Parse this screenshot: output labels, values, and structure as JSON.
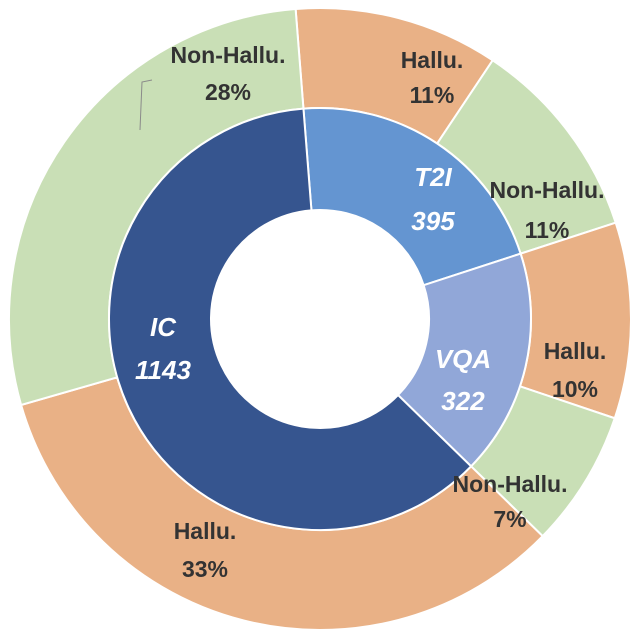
{
  "chart_data": {
    "type": "sunburst",
    "inner_ring": [
      {
        "name": "IC",
        "value": 1143,
        "color": "#36558f"
      },
      {
        "name": "T2I",
        "value": 395,
        "color": "#6495d1"
      },
      {
        "name": "VQA",
        "value": 322,
        "color": "#91a7d8"
      }
    ],
    "outer_ring": [
      {
        "parent": "T2I",
        "label": "Hallu.",
        "percent": "11%",
        "color": "#e9b186"
      },
      {
        "parent": "T2I",
        "label": "Non-Hallu.",
        "percent": "11%",
        "color": "#c9dfb6"
      },
      {
        "parent": "VQA",
        "label": "Hallu.",
        "percent": "10%",
        "color": "#e9b186"
      },
      {
        "parent": "VQA",
        "label": "Non-Hallu.",
        "percent": "7%",
        "color": "#c9dfb6"
      },
      {
        "parent": "IC",
        "label": "Hallu.",
        "percent": "33%",
        "color": "#e9b186"
      },
      {
        "parent": "IC",
        "label": "Non-Hallu.",
        "percent": "28%",
        "color": "#c9dfb6"
      }
    ]
  }
}
